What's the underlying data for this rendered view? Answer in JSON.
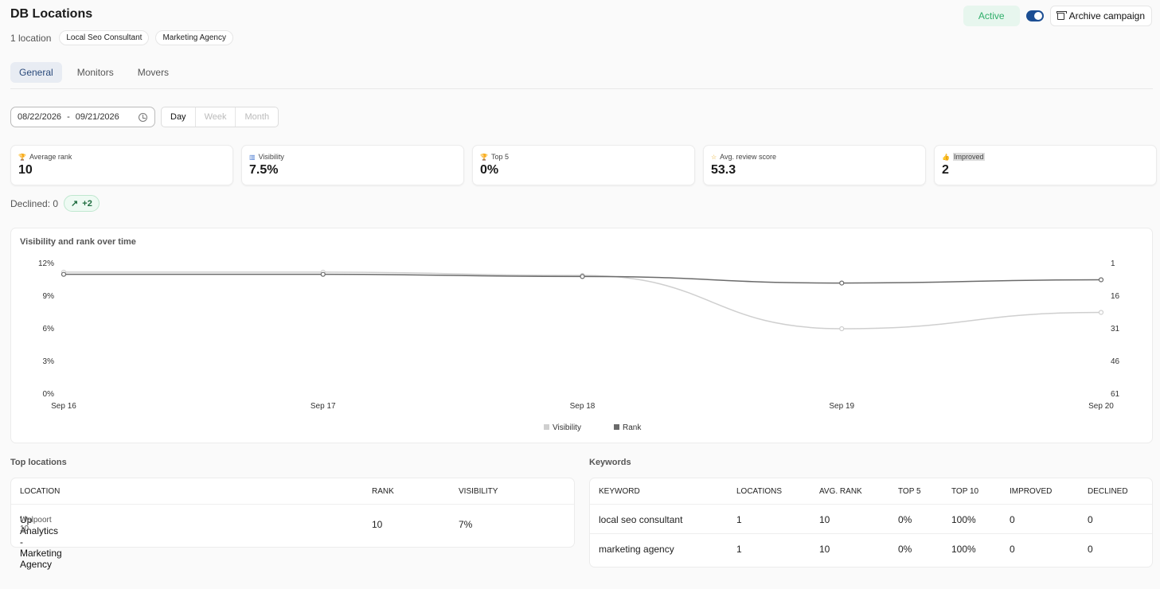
{
  "page": {
    "title": "DB Locations",
    "location_count": "1 location",
    "tags": [
      "Local Seo Consultant",
      "Marketing Agency"
    ],
    "status": "Active",
    "archive_label": "Archive campaign"
  },
  "tabs": [
    {
      "label": "General",
      "active": true
    },
    {
      "label": "Monitors",
      "active": false
    },
    {
      "label": "Movers",
      "active": false
    }
  ],
  "filters": {
    "date_start": "08/22/2026",
    "date_sep": "-",
    "date_end": "09/21/2026",
    "granularity": [
      "Day",
      "Week",
      "Month"
    ],
    "selected_granularity": "Day"
  },
  "stats": [
    {
      "icon": "trophy-icon",
      "label": "Average rank",
      "value": "10"
    },
    {
      "icon": "bar-chart-icon",
      "label": "Visibility",
      "value": "7.5%"
    },
    {
      "icon": "trophy-icon",
      "label": "Top 5",
      "value": "0%"
    },
    {
      "icon": "star-icon",
      "label": "Avg. review score",
      "value": "53.3"
    },
    {
      "icon": "thumbs-up-icon",
      "label": "Improved",
      "value": "2"
    }
  ],
  "declined": {
    "label": "Declined: 0",
    "delta": "+2"
  },
  "chart_data": {
    "type": "line",
    "title": "Visibility and rank over time",
    "x": [
      "Sep 16",
      "Sep 17",
      "Sep 18",
      "Sep 19",
      "Sep 20"
    ],
    "y_left_ticks": [
      "12%",
      "9%",
      "6%",
      "3%",
      "0%"
    ],
    "y_left_range": [
      0,
      12
    ],
    "y_right_ticks": [
      "1",
      "16",
      "31",
      "46",
      "61"
    ],
    "y_right_range": [
      1,
      61
    ],
    "series": [
      {
        "name": "Visibility",
        "axis": "left",
        "color": "#cfcfcf",
        "values": [
          11.2,
          11.2,
          10.9,
          6.0,
          7.5
        ]
      },
      {
        "name": "Rank",
        "axis": "right",
        "color": "#6b6b6b",
        "values": [
          6,
          6,
          7,
          10,
          8.5
        ]
      }
    ],
    "legend": "bottom-center"
  },
  "top_locations": {
    "title": "Top locations",
    "columns": [
      "LOCATION",
      "RANK",
      "VISIBILITY"
    ],
    "rows": [
      {
        "name": "Up Analytics - Marketing Agency",
        "address": "Walpoort 10",
        "rank": "10",
        "visibility": "7%"
      }
    ]
  },
  "keywords": {
    "title": "Keywords",
    "columns": [
      "KEYWORD",
      "LOCATIONS",
      "AVG. RANK",
      "TOP 5",
      "TOP 10",
      "IMPROVED",
      "DECLINED"
    ],
    "rows": [
      [
        "local seo consultant",
        "1",
        "10",
        "0%",
        "100%",
        "0",
        "0"
      ],
      [
        "marketing agency",
        "1",
        "10",
        "0%",
        "100%",
        "0",
        "0"
      ]
    ]
  }
}
